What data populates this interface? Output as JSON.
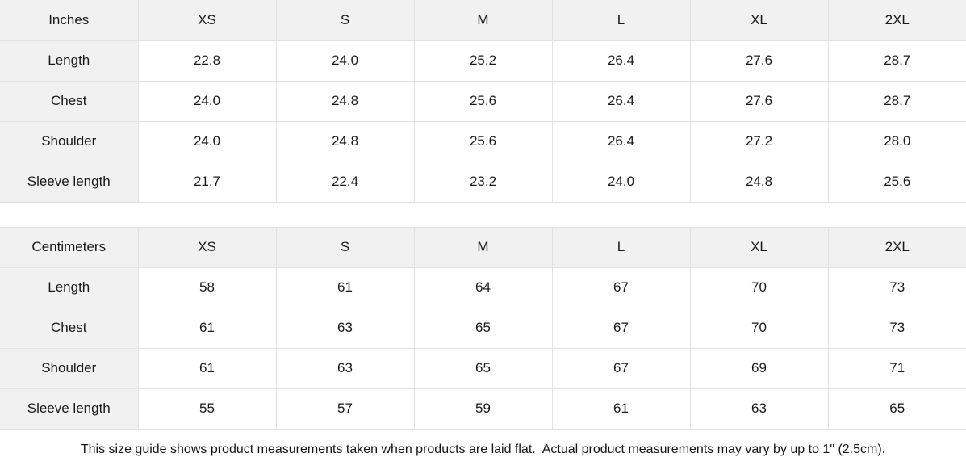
{
  "colors": {
    "header_bg": "#f1f1f1",
    "row_label_bg": "#f1f1f1",
    "cell_bg": "#ffffff",
    "border": "#e2e2e2",
    "text": "#191919"
  },
  "tables": [
    {
      "unit_label": "Inches",
      "columns": [
        "XS",
        "S",
        "M",
        "L",
        "XL",
        "2XL"
      ],
      "rows": [
        {
          "label": "Length",
          "values": [
            "22.8",
            "24.0",
            "25.2",
            "26.4",
            "27.6",
            "28.7"
          ]
        },
        {
          "label": "Chest",
          "values": [
            "24.0",
            "24.8",
            "25.6",
            "26.4",
            "27.6",
            "28.7"
          ]
        },
        {
          "label": "Shoulder",
          "values": [
            "24.0",
            "24.8",
            "25.6",
            "26.4",
            "27.2",
            "28.0"
          ]
        },
        {
          "label": "Sleeve length",
          "values": [
            "21.7",
            "22.4",
            "23.2",
            "24.0",
            "24.8",
            "25.6"
          ]
        }
      ]
    },
    {
      "unit_label": "Centimeters",
      "columns": [
        "XS",
        "S",
        "M",
        "L",
        "XL",
        "2XL"
      ],
      "rows": [
        {
          "label": "Length",
          "values": [
            "58",
            "61",
            "64",
            "67",
            "70",
            "73"
          ]
        },
        {
          "label": "Chest",
          "values": [
            "61",
            "63",
            "65",
            "67",
            "70",
            "73"
          ]
        },
        {
          "label": "Shoulder",
          "values": [
            "61",
            "63",
            "65",
            "67",
            "69",
            "71"
          ]
        },
        {
          "label": "Sleeve length",
          "values": [
            "55",
            "57",
            "59",
            "61",
            "63",
            "65"
          ]
        }
      ]
    }
  ],
  "footer": {
    "note": "This size guide shows product measurements taken when products are laid flat.  Actual product measurements may vary by up to 1\" (2.5cm)."
  }
}
